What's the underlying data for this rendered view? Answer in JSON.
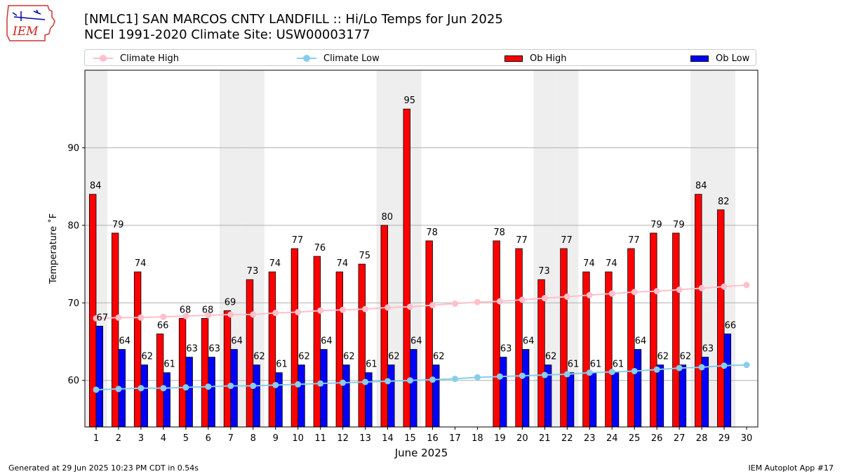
{
  "header": {
    "logo_text": "IEM",
    "title_line1": "[NMLC1] SAN MARCOS CNTY LANDFILL :: Hi/Lo Temps for Jun 2025",
    "title_line2": "NCEI 1991-2020 Climate Site: USW00003177"
  },
  "footer": {
    "generated": "Generated at 29 Jun 2025 10:23 PM CDT in 0.54s",
    "app": "IEM Autoplot App #17"
  },
  "colors": {
    "ob_high": "#ff0000",
    "ob_low": "#0000ff",
    "climate_high": "#ffc0cb",
    "climate_low": "#87ceeb",
    "weekend_shade": "#eeeeee",
    "grid": "#b0b0b0"
  },
  "chart_data": {
    "type": "bar",
    "xlabel": "June 2025",
    "ylabel": "Temperature ˚F",
    "ylim": [
      54,
      100
    ],
    "xlim": [
      0.5,
      30.5
    ],
    "yticks": [
      60,
      70,
      80,
      90
    ],
    "categories": [
      "1",
      "2",
      "3",
      "4",
      "5",
      "6",
      "7",
      "8",
      "9",
      "10",
      "11",
      "12",
      "13",
      "14",
      "15",
      "16",
      "17",
      "18",
      "19",
      "20",
      "21",
      "22",
      "23",
      "24",
      "25",
      "26",
      "27",
      "28",
      "29",
      "30"
    ],
    "grid": "horizontal",
    "legend_position": "top",
    "shaded_days": [
      1,
      7,
      8,
      14,
      15,
      21,
      22,
      28,
      29
    ],
    "series": [
      {
        "name": "Climate High",
        "kind": "line",
        "values": [
          68.0,
          68.1,
          68.1,
          68.2,
          68.3,
          68.4,
          68.5,
          68.5,
          68.7,
          68.8,
          69.0,
          69.1,
          69.2,
          69.4,
          69.5,
          69.7,
          69.9,
          70.1,
          70.2,
          70.4,
          70.6,
          70.8,
          71.0,
          71.2,
          71.4,
          71.5,
          71.7,
          71.9,
          72.1,
          72.3
        ]
      },
      {
        "name": "Climate Low",
        "kind": "line",
        "values": [
          58.8,
          58.9,
          59.0,
          59.0,
          59.1,
          59.2,
          59.3,
          59.3,
          59.4,
          59.5,
          59.6,
          59.7,
          59.8,
          59.9,
          60.0,
          60.1,
          60.2,
          60.4,
          60.5,
          60.6,
          60.7,
          60.8,
          61.0,
          61.1,
          61.2,
          61.4,
          61.6,
          61.7,
          61.9,
          62.0
        ]
      },
      {
        "name": "Ob High",
        "kind": "bar",
        "values": [
          84,
          79,
          74,
          66,
          68,
          68,
          69,
          73,
          74,
          77,
          76,
          74,
          75,
          80,
          95,
          78,
          null,
          null,
          78,
          77,
          73,
          77,
          74,
          74,
          77,
          79,
          79,
          84,
          82,
          null
        ]
      },
      {
        "name": "Ob Low",
        "kind": "bar",
        "values": [
          67,
          64,
          62,
          61,
          63,
          63,
          64,
          62,
          61,
          62,
          64,
          62,
          61,
          62,
          64,
          62,
          null,
          null,
          63,
          64,
          62,
          61,
          61,
          61,
          64,
          62,
          62,
          63,
          66,
          null
        ]
      }
    ]
  }
}
